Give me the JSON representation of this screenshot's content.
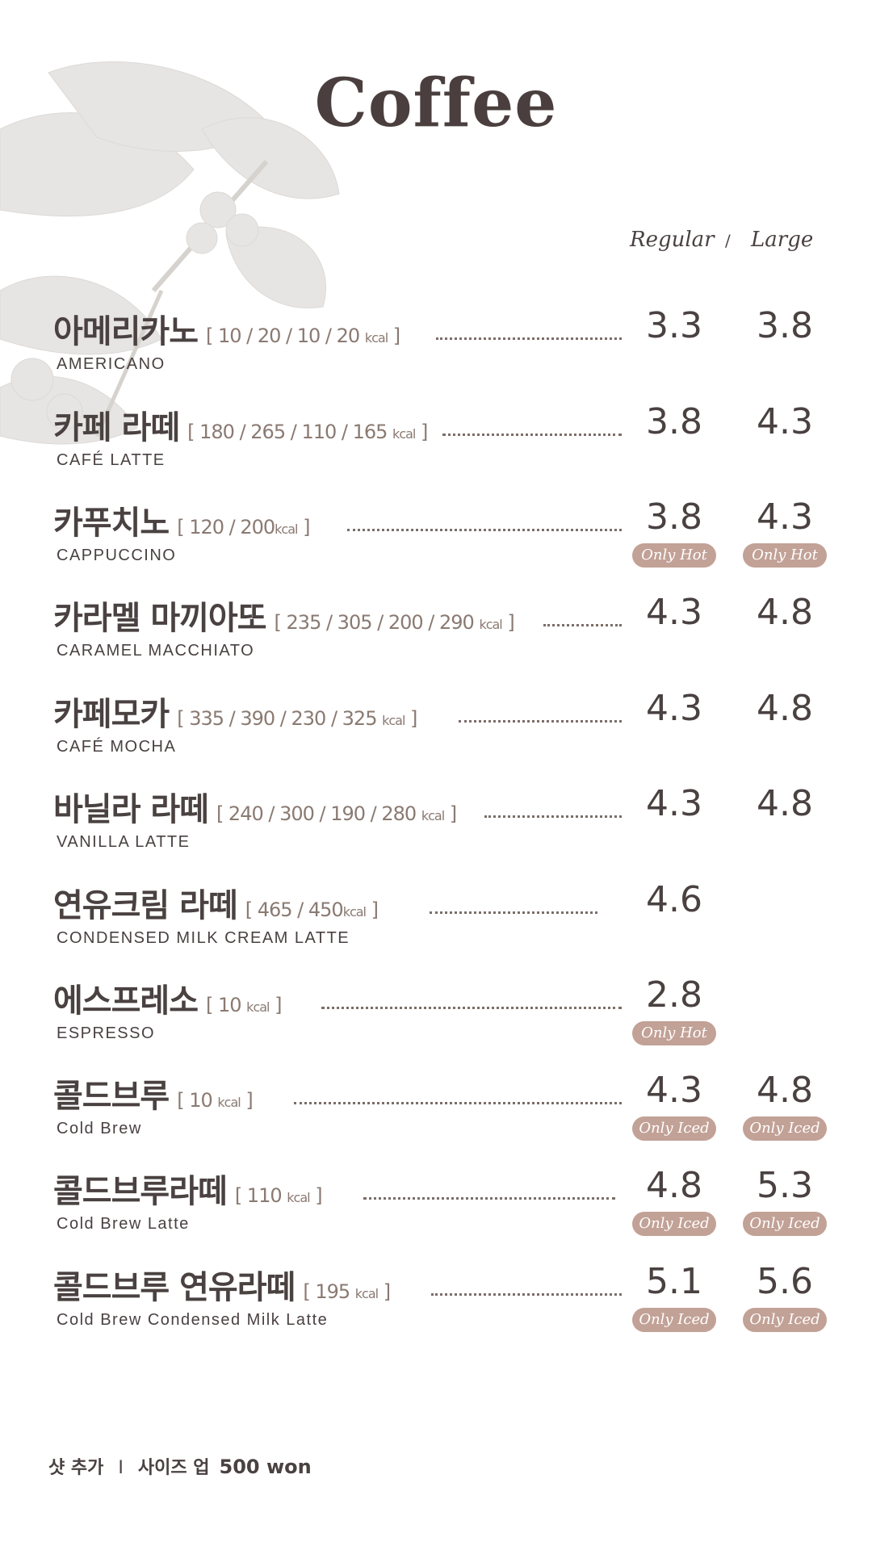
{
  "title": "Coffee",
  "size_header": {
    "regular": "Regular",
    "separator": "/",
    "large": "Large"
  },
  "items": [
    {
      "ko": "아메리카노",
      "kcal": "[ 10 / 20 / 10 / 20",
      "unit": "kcal",
      "close": " ]",
      "en": "AMERICANO",
      "regular": "3.3",
      "large": "3.8",
      "badge_regular": "",
      "badge_large": ""
    },
    {
      "ko": "카페 라떼",
      "kcal": "[ 180 / 265 / 110 / 165",
      "unit": "kcal",
      "close": " ]",
      "en": "CAFÉ LATTE",
      "regular": "3.8",
      "large": "4.3",
      "badge_regular": "",
      "badge_large": ""
    },
    {
      "ko": "카푸치노",
      "kcal": "[ 120 / 200",
      "unit": "kcal",
      "close": " ]",
      "en": "CAPPUCCINO",
      "regular": "3.8",
      "large": "4.3",
      "badge_regular": "Only Hot",
      "badge_large": "Only Hot"
    },
    {
      "ko": "카라멜 마끼아또",
      "kcal": "[ 235 / 305 / 200 / 290",
      "unit": "kcal",
      "close": " ]",
      "en": "CARAMEL MACCHIATO",
      "regular": "4.3",
      "large": "4.8",
      "badge_regular": "",
      "badge_large": ""
    },
    {
      "ko": "카페모카",
      "kcal": "[ 335 / 390 / 230 / 325",
      "unit": "kcal",
      "close": " ]",
      "en": "CAFÉ MOCHA",
      "regular": "4.3",
      "large": "4.8",
      "badge_regular": "",
      "badge_large": ""
    },
    {
      "ko": "바닐라 라떼",
      "kcal": "[ 240 / 300 / 190 / 280",
      "unit": "kcal",
      "close": " ]",
      "en": "VANILLA LATTE",
      "regular": "4.3",
      "large": "4.8",
      "badge_regular": "",
      "badge_large": ""
    },
    {
      "ko": "연유크림 라떼",
      "kcal": "[ 465 / 450",
      "unit": "kcal",
      "close": " ]",
      "en": "CONDENSED MILK CREAM LATTE",
      "regular": "4.6",
      "large": "",
      "badge_regular": "",
      "badge_large": ""
    },
    {
      "ko": "에스프레소",
      "kcal": "[ 10",
      "unit": "kcal",
      "close": " ]",
      "en": "ESPRESSO",
      "regular": "2.8",
      "large": "",
      "badge_regular": "Only Hot",
      "badge_large": ""
    },
    {
      "ko": "콜드브루",
      "kcal": "[ 10",
      "unit": "kcal",
      "close": " ]",
      "en": "Cold Brew",
      "regular": "4.3",
      "large": "4.8",
      "badge_regular": "Only Iced",
      "badge_large": "Only Iced"
    },
    {
      "ko": "콜드브루라떼",
      "kcal": "[ 110",
      "unit": "kcal",
      "close": " ]",
      "en": "Cold Brew Latte",
      "regular": "4.8",
      "large": "5.3",
      "badge_regular": "Only Iced",
      "badge_large": "Only Iced"
    },
    {
      "ko": "콜드브루 연유라떼",
      "kcal": "[ 195",
      "unit": "kcal",
      "close": " ]",
      "en": "Cold Brew Condensed Milk Latte",
      "regular": "5.1",
      "large": "5.6",
      "badge_regular": "Only Iced",
      "badge_large": "Only Iced"
    }
  ],
  "footer": {
    "shot": "샷 추가",
    "separator": "I",
    "sizeup": "사이즈 업",
    "price": "500 won"
  },
  "colors": {
    "text": "#4a4141",
    "badge": "#c2a196",
    "kcal": "#8a7a72"
  }
}
